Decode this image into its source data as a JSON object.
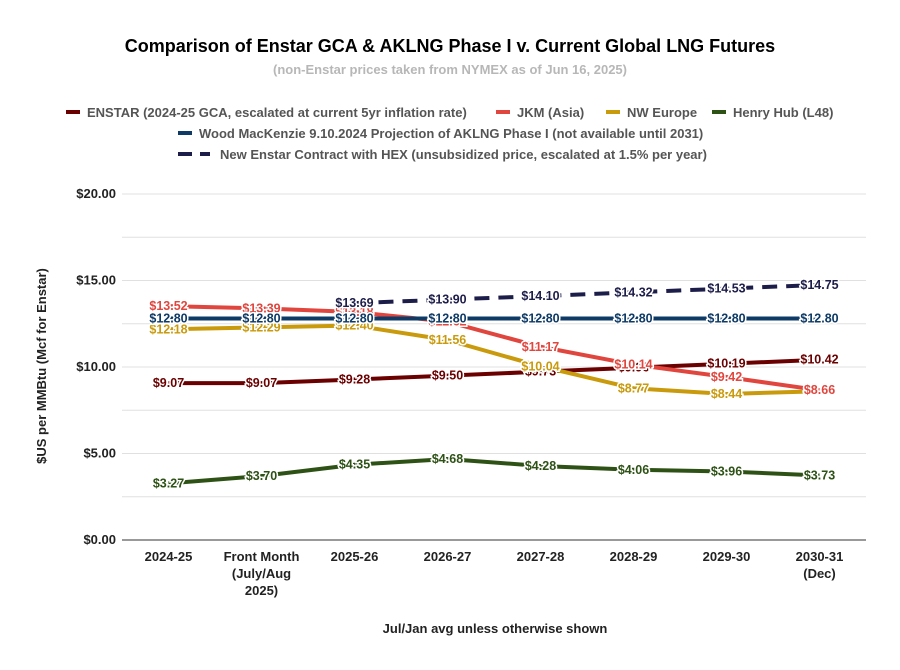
{
  "chart_data": {
    "type": "line",
    "title": "Comparison of Enstar GCA & AKLNG Phase I v. Current Global LNG Futures",
    "subtitle": "(non-Enstar prices taken from NYMEX as of Jun 16, 2025)",
    "xlabel": "Jul/Jan avg unless otherwise shown",
    "ylabel": "$US per MMBtu (Mcf for Enstar)",
    "ylim": [
      0,
      20
    ],
    "yticks": [
      {
        "value": 0,
        "label": "$0.00"
      },
      {
        "value": 5,
        "label": "$5.00"
      },
      {
        "value": 10,
        "label": "$10.00"
      },
      {
        "value": 15,
        "label": "$15.00"
      },
      {
        "value": 20,
        "label": "$20.00"
      }
    ],
    "categories": [
      [
        "2024-25"
      ],
      [
        "Front Month",
        "(July/Aug",
        "2025)"
      ],
      [
        "2025-26"
      ],
      [
        "2026-27"
      ],
      [
        "2027-28"
      ],
      [
        "2028-29"
      ],
      [
        "2029-30"
      ],
      [
        "2030-31",
        "(Dec)"
      ]
    ],
    "grid": true,
    "legend_position": "top",
    "series": [
      {
        "name": "ENSTAR (2024-25 GCA, escalated at current 5yr inflation rate)",
        "color": "#6b0000",
        "dash": "solid",
        "values": [
          9.07,
          9.07,
          9.28,
          9.5,
          9.73,
          9.96,
          10.19,
          10.42
        ],
        "labels": [
          "$9.07",
          "$9.07",
          "$9.28",
          "$9.50",
          "$9.73",
          "$9.96",
          "$10.19",
          "$10.42"
        ]
      },
      {
        "name": "JKM (Asia)",
        "color": "#e0463e",
        "dash": "solid",
        "values": [
          13.52,
          13.39,
          13.18,
          12.62,
          11.17,
          10.14,
          9.42,
          8.66
        ],
        "labels": [
          "$13.52",
          "$13.39",
          "$13.18",
          "$12.62",
          "$11.17",
          "$10.14",
          "$9.42",
          "$8.66"
        ]
      },
      {
        "name": "NW Europe",
        "color": "#c99a0c",
        "dash": "solid",
        "values": [
          12.18,
          12.29,
          12.4,
          11.56,
          10.04,
          8.77,
          8.44,
          8.6
        ],
        "labels": [
          "$12.18",
          "$12.29",
          "$12.40",
          "$11.56",
          "$10.04",
          "$8.77",
          "$8.44",
          "$8.60"
        ]
      },
      {
        "name": "Henry Hub (L48)",
        "color": "#2e5216",
        "dash": "solid",
        "values": [
          3.27,
          3.7,
          4.35,
          4.68,
          4.28,
          4.06,
          3.96,
          3.73
        ],
        "labels": [
          "$3.27",
          "$3.70",
          "$4.35",
          "$4.68",
          "$4.28",
          "$4.06",
          "$3.96",
          "$3.73"
        ]
      },
      {
        "name": "Wood MacKenzie 9.10.2024 Projection of AKLNG Phase I (not available until 2031)",
        "color": "#0e3a66",
        "dash": "solid",
        "values": [
          12.8,
          12.8,
          12.8,
          12.8,
          12.8,
          12.8,
          12.8,
          12.8
        ],
        "labels": [
          "$12.80",
          "$12.80",
          "$12.80",
          "$12.80",
          "$12.80",
          "$12.80",
          "$12.80",
          "$12.80"
        ]
      },
      {
        "name": "New Enstar Contract with HEX (unsubsidized price, escalated at 1.5% per year)",
        "color": "#1d1d4a",
        "dash": "dashed",
        "values": [
          null,
          null,
          13.69,
          13.9,
          14.1,
          14.32,
          14.53,
          14.75
        ],
        "labels": [
          null,
          null,
          "$13.69",
          "$13.90",
          "$14.10",
          "$14.32",
          "$14.53",
          "$14.75"
        ]
      }
    ]
  }
}
